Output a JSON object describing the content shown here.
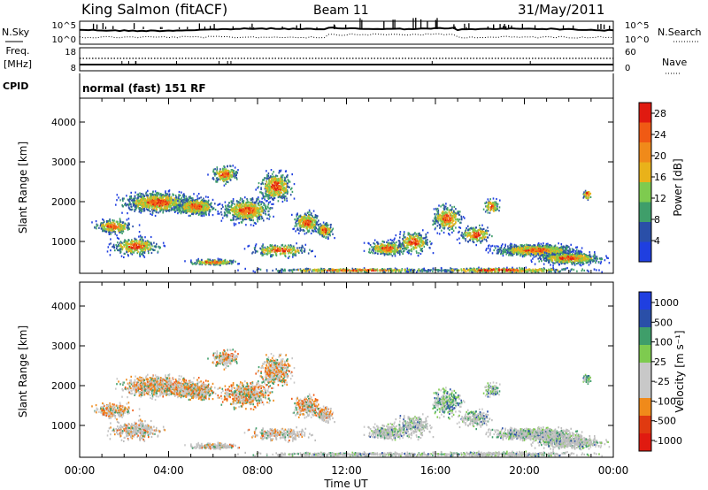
{
  "header": {
    "station": "King Salmon (fitACF)",
    "beam": "Beam 11",
    "date": "31/May/2011"
  },
  "left_labels": {
    "nsky": "N.Sky",
    "freq": "Freq.",
    "freq_unit": "[MHz]",
    "cpid": "CPID"
  },
  "right_labels": {
    "nsearch": "N.Search",
    "nave": "Nave"
  },
  "cpid_text": "normal (fast) 151 RF",
  "x_axis": {
    "label": "Time UT",
    "ticks": [
      "00:00",
      "04:00",
      "08:00",
      "12:00",
      "16:00",
      "20:00",
      "00:00"
    ]
  },
  "colors": {
    "power": [
      "#1f3fe0",
      "#2a4fa8",
      "#3f9e6a",
      "#7ecb4f",
      "#e9b21a",
      "#f08a1a",
      "#f05a14",
      "#e01a10"
    ],
    "velocity": [
      "#e01a10",
      "#f05a14",
      "#f08a1a",
      "#c8c8c8",
      "#c8c8c8",
      "#7ecb4f",
      "#3f9e6a",
      "#2a4fa8",
      "#1f3fe0"
    ],
    "ground": "#bdbdbd"
  },
  "chart_data": [
    {
      "type": "line",
      "panel": "noise",
      "y_left_ticks": [
        "10^5",
        "10^0"
      ],
      "y_right_ticks": [
        "10^5",
        "10^0"
      ],
      "y_left_label": "N.Sky",
      "y_right_label": "N.Search"
    },
    {
      "type": "line",
      "panel": "frequency",
      "y_left_ticks": [
        "18",
        "8"
      ],
      "y_right_ticks": [
        "60",
        "0"
      ],
      "y_left_label": "Freq. [MHz]",
      "y_right_label": "Nave"
    },
    {
      "type": "heatmap",
      "panel": "power",
      "ylabel": "Slant Range [km]",
      "xlabel": "Time UT",
      "y_ticks": [
        "1000",
        "2000",
        "3000",
        "4000"
      ],
      "ylim": [
        200,
        4600
      ],
      "colorbar": {
        "label": "Power [dB]",
        "ticks": [
          "4",
          "8",
          "12",
          "16",
          "20",
          "24",
          "28"
        ],
        "range": [
          0,
          30
        ]
      }
    },
    {
      "type": "heatmap",
      "panel": "velocity",
      "ylabel": "Slant Range [km]",
      "xlabel": "Time UT",
      "y_ticks": [
        "1000",
        "2000",
        "3000",
        "4000"
      ],
      "ylim": [
        200,
        4600
      ],
      "colorbar": {
        "label": "Velocity [m s⁻¹]",
        "ticks": [
          "1000",
          "500",
          "100",
          "25",
          "-25",
          "-100",
          "-500",
          "-1000"
        ]
      }
    }
  ]
}
